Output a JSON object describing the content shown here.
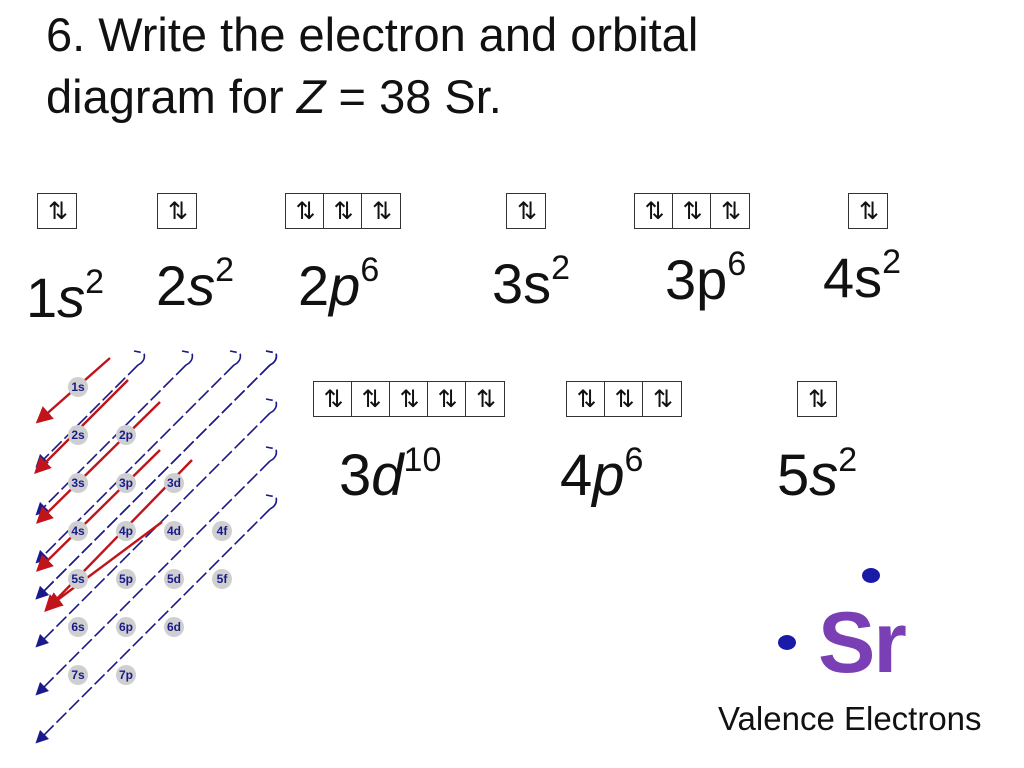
{
  "title": {
    "line1": "6.  Write the electron and orbital",
    "line2_pre": "diagram for  ",
    "line2_var": "Z",
    "line2_post": " = 38  Sr."
  },
  "configuration": [
    {
      "n": "1",
      "l": "s",
      "e": "2",
      "arrows": [
        "1↿⇂"
      ]
    },
    {
      "n": "2",
      "l": "s",
      "e": "2",
      "arrows": [
        "1↿⇂"
      ]
    },
    {
      "n": "2",
      "l": "p",
      "e": "6",
      "arrows": [
        "1↿⇂",
        "1↿⇂",
        "1↿⇂"
      ]
    },
    {
      "n": "3",
      "l": "s",
      "e": "2",
      "arrows": [
        "1↿⇂"
      ]
    },
    {
      "n": "3",
      "l": "p",
      "e": "6",
      "arrows": [
        "1↿⇂",
        "1↿⇂",
        "1↿⇂"
      ]
    },
    {
      "n": "4",
      "l": "s",
      "e": "2",
      "arrows": [
        "1↿⇂"
      ]
    },
    {
      "n": "3",
      "l": "d",
      "e": "10",
      "arrows": [
        "1↿⇂",
        "1↿⇂",
        "1↿⇂",
        "1↿⇂",
        "1↿⇂"
      ]
    },
    {
      "n": "4",
      "l": "p",
      "e": "6",
      "arrows": [
        "1↿⇂",
        "1↿⇂",
        "1↿⇂"
      ]
    },
    {
      "n": "5",
      "l": "s",
      "e": "2",
      "arrows": [
        "1↿⇂"
      ]
    }
  ],
  "box_glyph": "⇅",
  "aufbau_labels": [
    [
      "1s"
    ],
    [
      "2s",
      "2p"
    ],
    [
      "3s",
      "3p",
      "3d"
    ],
    [
      "4s",
      "4p",
      "4d",
      "4f"
    ],
    [
      "5s",
      "5p",
      "5d",
      "5f"
    ],
    [
      "6s",
      "6p",
      "6d"
    ],
    [
      "7s",
      "7p"
    ]
  ],
  "lewis": {
    "symbol": "Sr",
    "caption": "Valence Electrons"
  },
  "colors": {
    "arrow_red": "#c0141a",
    "arrow_blue": "#1a1a8c",
    "sr_purple": "#7a3fb5",
    "dot": "#1a1aa8"
  }
}
